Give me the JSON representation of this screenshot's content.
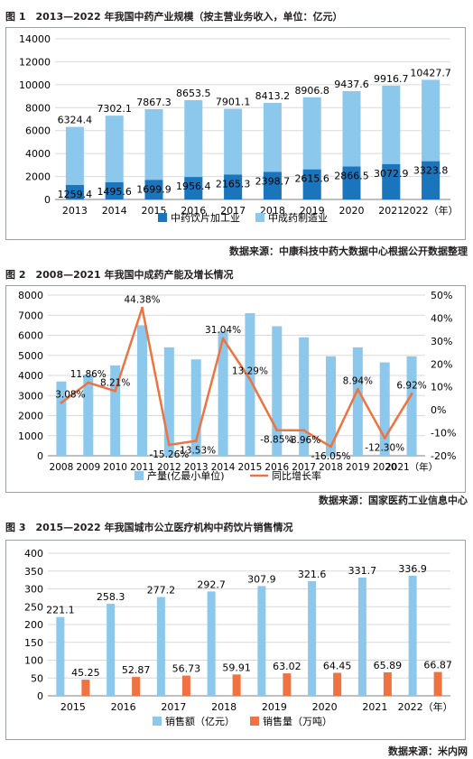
{
  "figures": [
    {
      "title": "图 1　2013—2022 年我国中药产业规模（按主营业务收入，单位：亿元）",
      "source": "数据来源：中康科技中药大数据中心根据公开数据整理"
    },
    {
      "title": "图 2　2008—2021 年我国中成药产能及增长情况",
      "source": "数据来源：国家医药工业信息中心"
    },
    {
      "title": "图 3　2015—2022 年我国城市公立医疗机构中药饮片销售情况",
      "source": "数据来源：米内网"
    }
  ],
  "chart_data": [
    {
      "type": "bar",
      "stacked": true,
      "categories": [
        "2013",
        "2014",
        "2015",
        "2016",
        "2017",
        "2018",
        "2019",
        "2020",
        "2021",
        "2022（年）"
      ],
      "series": [
        {
          "name": "中药饮片加工业",
          "color": "#1b75bc",
          "values": [
            1259.4,
            1495.6,
            1699.9,
            1956.4,
            2165.3,
            2398.7,
            2615.6,
            2866.5,
            3072.9,
            3323.8
          ]
        },
        {
          "name": "中成药制造业",
          "color": "#8cc8ec",
          "values": [
            6324.4,
            7302.1,
            7867.3,
            8653.5,
            7901.1,
            8413.2,
            8906.8,
            9437.6,
            9916.7,
            10427.7
          ]
        }
      ],
      "ylim": [
        0,
        14000
      ],
      "yticks": [
        "0",
        "2000",
        "4000",
        "6000",
        "8000",
        "10000",
        "12000",
        "14000"
      ],
      "grid": true,
      "legend": "bottom"
    },
    {
      "type": "bar+line",
      "categories": [
        "2008",
        "2009",
        "2010",
        "2011",
        "2012",
        "2013",
        "2014",
        "2015",
        "2016",
        "2017",
        "2018",
        "2019",
        "2020",
        "2021（年）"
      ],
      "series": [
        {
          "name": "产量(亿最小单位)",
          "type": "bar",
          "axis": "left",
          "color": "#8cc8ec",
          "values": [
            3700,
            4050,
            4500,
            6500,
            5400,
            4800,
            6200,
            7100,
            6450,
            5900,
            4950,
            5400,
            4650,
            4950
          ]
        },
        {
          "name": "同比增长率",
          "type": "line",
          "axis": "right",
          "color": "#ee7340",
          "values": [
            3.08,
            11.86,
            8.21,
            44.38,
            -15.26,
            -13.53,
            31.04,
            13.29,
            -8.85,
            -8.96,
            -16.05,
            8.94,
            -12.3,
            6.92
          ],
          "labels": [
            "3.08%",
            "11.86%",
            "8.21%",
            "44.38%",
            "-15.26%",
            "-13.53%",
            "31.04%",
            "13.29%",
            "-8.85%",
            "-8.96%",
            "-16.05%",
            "8.94%",
            "-12.30%",
            "6.92%"
          ]
        }
      ],
      "ylim": [
        0,
        8000
      ],
      "yticks": [
        "0",
        "1000",
        "2000",
        "3000",
        "4000",
        "5000",
        "6000",
        "7000",
        "8000"
      ],
      "y2lim": [
        -20,
        50
      ],
      "y2ticks": [
        "-20%",
        "-10%",
        "0%",
        "10%",
        "20%",
        "30%",
        "40%",
        "50%"
      ],
      "grid": true,
      "legend": "bottom"
    },
    {
      "type": "bar",
      "categories": [
        "2015",
        "2016",
        "2017",
        "2018",
        "2019",
        "2020",
        "2021",
        "2022（年）"
      ],
      "series": [
        {
          "name": "销售额（亿元）",
          "color": "#8cc8ec",
          "values": [
            221.1,
            258.3,
            277.2,
            292.7,
            307.9,
            321.6,
            331.7,
            336.9
          ],
          "labels": [
            "221.1",
            "258.3",
            "277.2",
            "292.7",
            "307.9",
            "321.6",
            "331.7",
            "336.9"
          ]
        },
        {
          "name": "销售量（万吨）",
          "color": "#ee7340",
          "values": [
            45.25,
            52.87,
            56.73,
            59.91,
            63.02,
            64.45,
            65.89,
            66.87
          ],
          "labels": [
            "45.25",
            "52.87",
            "56.73",
            "59.91",
            "63.02",
            "64.45",
            "65.89",
            "66.87"
          ]
        }
      ],
      "ylim": [
        0,
        400
      ],
      "yticks": [
        "0",
        "50",
        "100",
        "150",
        "200",
        "250",
        "300",
        "350",
        "400"
      ],
      "grid": true,
      "legend": "bottom"
    }
  ]
}
